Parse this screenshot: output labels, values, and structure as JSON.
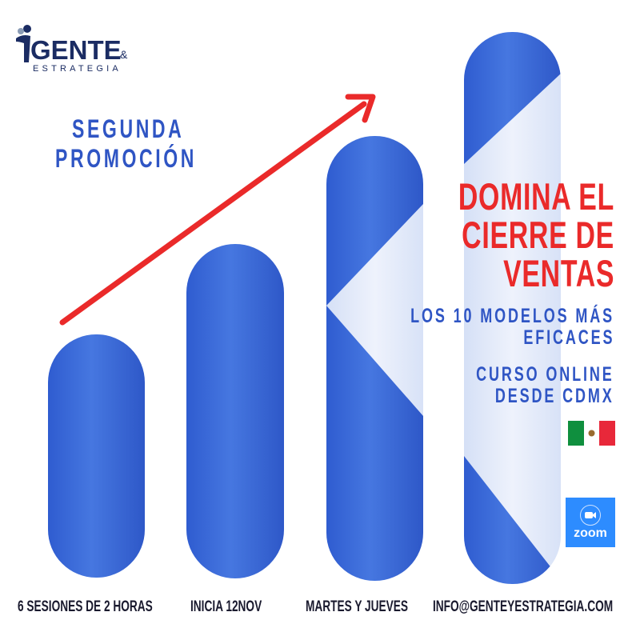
{
  "logo": {
    "line1": "GENTE",
    "amp": "&",
    "line2": "ESTRATEGIA"
  },
  "promo": {
    "line1": "SEGUNDA",
    "line2": "PROMOCIÓN"
  },
  "headline": {
    "line1": "DOMINA EL",
    "line2": "CIERRE DE",
    "line3": "VENTAS"
  },
  "subtitle": {
    "line1": "LOS 10 MODELOS MÁS",
    "line2": "EFICACES"
  },
  "course": {
    "line1": "CURSO ONLINE",
    "line2": "DESDE CDMX"
  },
  "zoom_badge": {
    "label": "zoom"
  },
  "bottom_labels": [
    "6 SESIONES DE 2 HORAS",
    "INICIA 12NOV",
    "MARTES Y JUEVES",
    "INFO@GENTEYESTRATEGIA.COM"
  ],
  "colors": {
    "pill_blue": "#3d6ad6",
    "pill_light": "#dfe7f8",
    "arrow_red": "#ea2a2a",
    "text_blue": "#2f55c4",
    "zoom_blue": "#2d8cff",
    "flag_green": "#0f8f3e",
    "flag_red": "#e8283a"
  }
}
